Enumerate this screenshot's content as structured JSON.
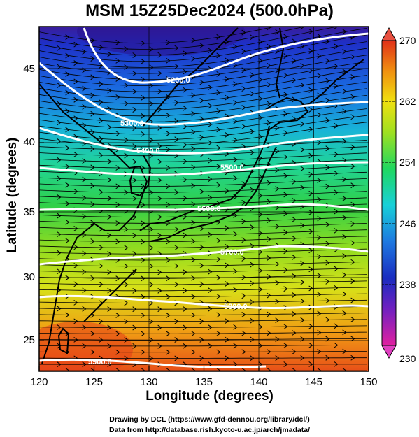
{
  "title": "MSM 15Z25Dec2024 (500.0hPa)",
  "xlabel": "Longitude (degrees)",
  "ylabel": "Latitude  (degrees)",
  "x_ticks": [
    "120",
    "125",
    "130",
    "135",
    "140",
    "145",
    "150"
  ],
  "y_ticks": [
    "25",
    "30",
    "35",
    "40",
    "45"
  ],
  "colorbar": {
    "min": 230,
    "max": 270,
    "tick_labels": [
      "270",
      "262",
      "254",
      "246",
      "238",
      "230"
    ],
    "colors": [
      "#e0208a",
      "#7020c0",
      "#1838c8",
      "#1e88e8",
      "#18d0d0",
      "#28d868",
      "#a0e020",
      "#f0e010",
      "#f08c10",
      "#e03818"
    ]
  },
  "contours": [
    {
      "label": "5200.0"
    },
    {
      "label": "5300.0"
    },
    {
      "label": "5400.0"
    },
    {
      "label": "5500.0"
    },
    {
      "label": "5600.0"
    },
    {
      "label": "5700.0"
    },
    {
      "label": "5800.0"
    },
    {
      "label": "5900.0"
    }
  ],
  "credit_line1": "Drawing by DCL (https://www.gfd-dennou.org/library/dcl/)",
  "credit_line2": "Data from http://database.rish.kyoto-u.ac.jp/arch/jmadata/"
}
